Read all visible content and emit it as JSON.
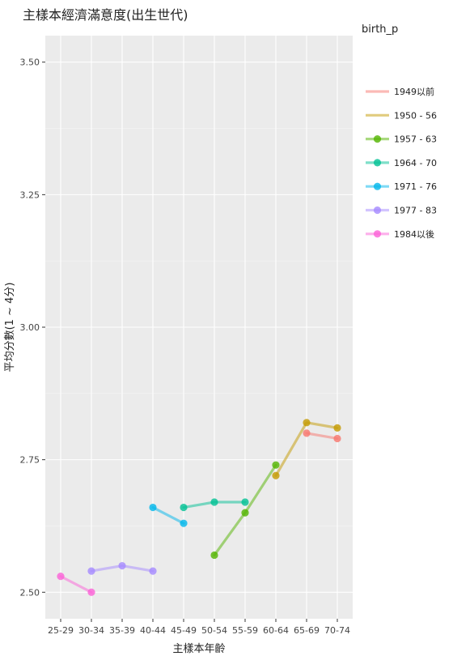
{
  "chart_data": {
    "type": "line",
    "title": "主樣本經濟滿意度(出生世代)",
    "xlabel": "主樣本年齡",
    "ylabel": "平均分數(1 ~ 4分)",
    "categories": [
      "25-29",
      "30-34",
      "35-39",
      "40-44",
      "45-49",
      "50-54",
      "55-59",
      "60-64",
      "65-69",
      "70-74"
    ],
    "y_ticks": [
      "2.50",
      "2.75",
      "3.00",
      "3.25",
      "3.50"
    ],
    "y_tick_values": [
      2.5,
      2.75,
      3.0,
      3.25,
      3.5
    ],
    "ylim": [
      2.45,
      3.55
    ],
    "grid": true,
    "legend": {
      "title": "birth_p",
      "placement": "right"
    },
    "series": [
      {
        "name": "1949以前",
        "color": "#F8766D",
        "points": [
          [
            "65-69",
            2.8
          ],
          [
            "70-74",
            2.79
          ]
        ]
      },
      {
        "name": "1950 - 56",
        "color": "#C49A00",
        "points": [
          [
            "60-64",
            2.72
          ],
          [
            "65-69",
            2.82
          ],
          [
            "70-74",
            2.81
          ]
        ]
      },
      {
        "name": "1957 - 63",
        "color": "#53B400",
        "points": [
          [
            "50-54",
            2.57
          ],
          [
            "55-59",
            2.65
          ],
          [
            "60-64",
            2.74
          ]
        ]
      },
      {
        "name": "1964 - 70",
        "color": "#00C094",
        "points": [
          [
            "45-49",
            2.66
          ],
          [
            "50-54",
            2.67
          ],
          [
            "55-59",
            2.67
          ]
        ]
      },
      {
        "name": "1971 - 76",
        "color": "#00B6EB",
        "points": [
          [
            "40-44",
            2.66
          ],
          [
            "45-49",
            2.63
          ]
        ]
      },
      {
        "name": "1977 - 83",
        "color": "#A58AFF",
        "points": [
          [
            "30-34",
            2.54
          ],
          [
            "35-39",
            2.55
          ],
          [
            "40-44",
            2.54
          ]
        ]
      },
      {
        "name": "1984以後",
        "color": "#FB61D7",
        "points": [
          [
            "25-29",
            2.53
          ],
          [
            "30-34",
            2.5
          ]
        ]
      }
    ]
  }
}
